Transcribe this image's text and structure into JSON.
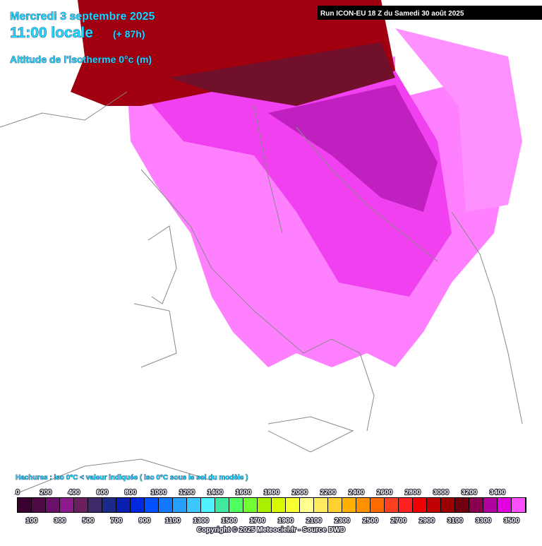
{
  "header": {
    "date": "Mercredi 3 septembre 2025",
    "time": "11:00 locale",
    "lead": "(+ 87h)",
    "parameter": "Altitude de l'isotherme 0°c (m)",
    "run": "Run ICON-EU 18 Z du Samedi 30 août 2025"
  },
  "legend": {
    "note": "Hachures : iso 0°C < valeur indiquée ( iso 0°C sous le sol du modèle )",
    "levels": [
      0,
      100,
      200,
      300,
      400,
      500,
      600,
      700,
      800,
      900,
      1000,
      1100,
      1200,
      1300,
      1400,
      1500,
      1600,
      1700,
      1800,
      1900,
      2000,
      2100,
      2200,
      2300,
      2400,
      2500,
      2600,
      2700,
      2800,
      2900,
      3000,
      3100,
      3200,
      3300,
      3400,
      3500
    ],
    "colors": [
      "#3a0030",
      "#4f0a45",
      "#6b0f6b",
      "#8c1a8c",
      "#6a1f5e",
      "#3d2a6a",
      "#1a2a8a",
      "#0a1fb0",
      "#0028e0",
      "#0050ff",
      "#1478ff",
      "#28a0ff",
      "#3cc8ff",
      "#50f0ff",
      "#40e8a0",
      "#50ff60",
      "#70ff30",
      "#a8f000",
      "#d8f800",
      "#f8ff30",
      "#ffff90",
      "#ffea60",
      "#ffd030",
      "#ffb000",
      "#ff9000",
      "#ff6a00",
      "#ff4020",
      "#ff2020",
      "#f00000",
      "#c00000",
      "#9a0000",
      "#700010",
      "#8a0050",
      "#b000a0",
      "#e000e0",
      "#ff50ff"
    ]
  },
  "footer": {
    "copyright": "Copyright © 2025 Meteociel.fr - Source DWD"
  }
}
